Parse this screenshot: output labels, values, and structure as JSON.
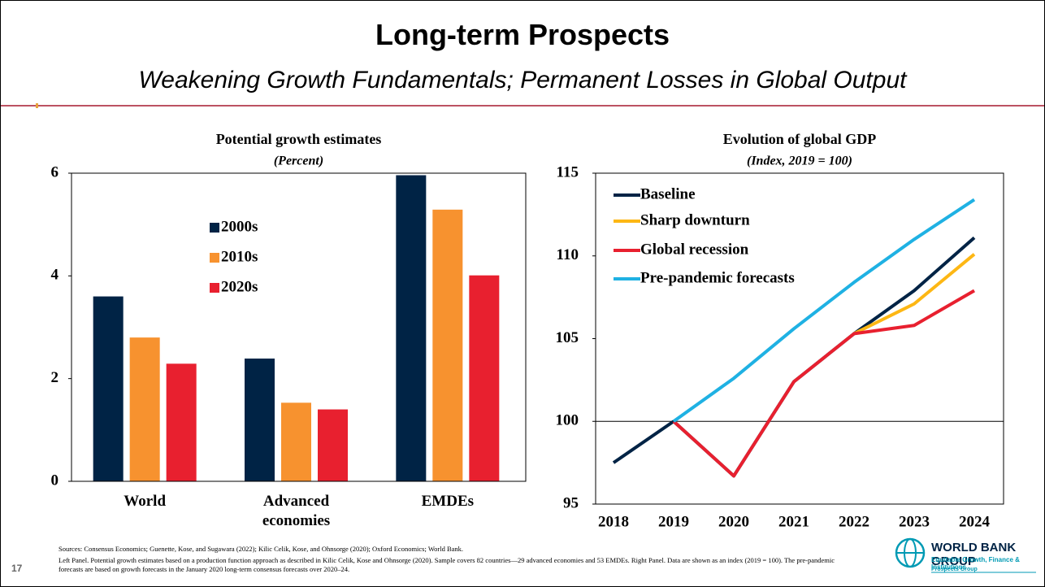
{
  "header": {
    "title": "Long-term Prospects",
    "subtitle": "Weakening Growth Fundamentals; Permanent Losses in Global Output"
  },
  "chart_data": [
    {
      "type": "bar",
      "title": "Potential growth estimates",
      "subtitle": "(Percent)",
      "categories": [
        "World",
        "Advanced economies",
        "EMDEs"
      ],
      "series": [
        {
          "name": "2000s",
          "color": "#002345",
          "values": [
            3.6,
            2.39,
            5.96
          ]
        },
        {
          "name": "2010s",
          "color": "#f7922f",
          "values": [
            2.8,
            1.53,
            5.29
          ]
        },
        {
          "name": "2020s",
          "color": "#e8202f",
          "values": [
            2.29,
            1.4,
            4.01
          ]
        }
      ],
      "ylim": [
        0,
        6
      ],
      "yticks": [
        0,
        2,
        4,
        6
      ],
      "legend": "inside"
    },
    {
      "type": "line",
      "title": "Evolution of global GDP",
      "subtitle": "(Index, 2019 = 100)",
      "categories": [
        "2018",
        "2019",
        "2020",
        "2021",
        "2022",
        "2023",
        "2024"
      ],
      "series": [
        {
          "name": "Baseline",
          "color": "#002345",
          "values": [
            97.5,
            100,
            96.7,
            102.4,
            105.3,
            107.9,
            111.1
          ]
        },
        {
          "name": "Sharp downturn",
          "color": "#fdb714",
          "values": [
            null,
            null,
            null,
            null,
            105.3,
            107.1,
            110.1
          ]
        },
        {
          "name": "Global recession",
          "color": "#e8202f",
          "values": [
            null,
            100,
            96.7,
            102.4,
            105.3,
            105.8,
            107.9
          ]
        },
        {
          "name": "Pre-pandemic forecasts",
          "color": "#1fb1e3",
          "values": [
            null,
            100,
            102.6,
            105.6,
            108.4,
            111.0,
            113.4
          ]
        }
      ],
      "ylim": [
        95,
        115
      ],
      "yticks": [
        95,
        100,
        105,
        110,
        115
      ],
      "reference_line": 100,
      "legend": "upper left"
    }
  ],
  "footer": {
    "page": "17",
    "sources": "Sources: Consensus Economics; Guenette, Kose, and Sugawara (2022); Kilic Celik, Kose, and Ohnsorge (2020); Oxford Economics; World Bank.",
    "notes": "Left Panel. Potential growth estimates based on a production function approach as described in Kilic Celik, Kose and Ohnsorge (2020). Sample covers 82 countries—29 advanced economies and 53 EMDEs. Right Panel. Data are shown as an index (2019 = 100). The pre-pandemic forecasts are based on growth forecasts in the January 2020 long-term consensus forecasts over 2020–24.",
    "logo": {
      "name": "WORLD BANK GROUP",
      "line1": "Equitable Growth, Finance & Institutions",
      "line2": "Prospects Group"
    }
  }
}
